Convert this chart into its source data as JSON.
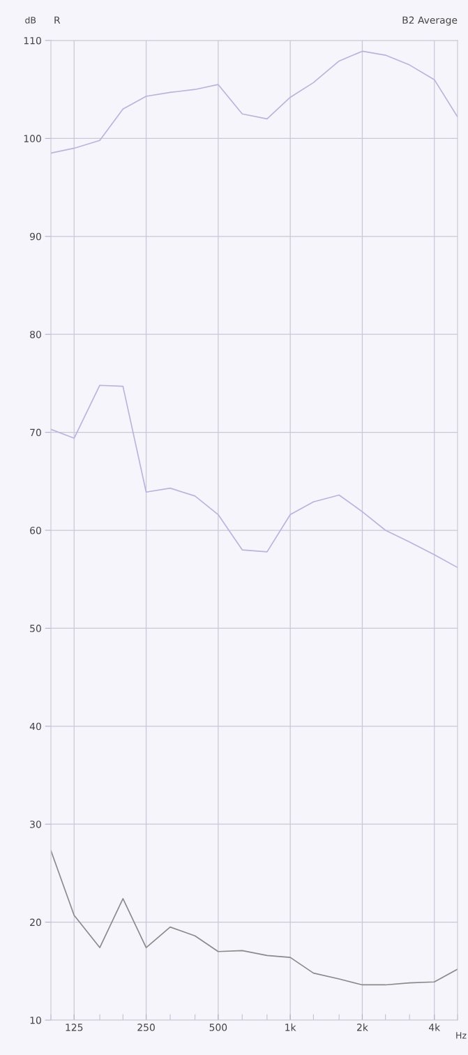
{
  "chart_data": {
    "type": "line",
    "title": "B2 Average",
    "xlabel": "Hz",
    "ylabel": "dB",
    "annotations": [
      "R"
    ],
    "x": [
      100,
      125,
      160,
      200,
      250,
      315,
      400,
      500,
      630,
      800,
      1000,
      1250,
      1600,
      2000,
      2500,
      3150,
      4000,
      5000
    ],
    "series": [
      {
        "color": "#b8b4dc",
        "values": [
          98.5,
          99.0,
          99.8,
          103.0,
          104.3,
          104.7,
          105.0,
          105.5,
          102.5,
          102.0,
          104.2,
          105.7,
          107.9,
          108.9,
          108.5,
          107.5,
          106.0,
          102.2
        ]
      },
      {
        "color": "#b8b4dc",
        "values": [
          70.3,
          69.4,
          74.8,
          74.7,
          63.9,
          64.3,
          63.5,
          61.6,
          58.0,
          57.8,
          61.6,
          62.9,
          63.6,
          61.9,
          60.0,
          58.8,
          57.5,
          56.2
        ]
      },
      {
        "color": "#8a8a8a",
        "values": [
          27.3,
          20.7,
          17.4,
          22.4,
          17.4,
          19.5,
          18.6,
          17.0,
          17.1,
          16.6,
          16.4,
          14.8,
          14.2,
          13.6,
          13.6,
          13.8,
          13.9,
          15.2
        ]
      }
    ],
    "log": "x",
    "xlim": [
      100,
      5000
    ],
    "ylim": [
      10,
      110
    ],
    "xticks": [
      {
        "value": 100,
        "label": null
      },
      {
        "value": 125,
        "label": "125"
      },
      {
        "value": 160,
        "label": null
      },
      {
        "value": 200,
        "label": null
      },
      {
        "value": 250,
        "label": "250"
      },
      {
        "value": 315,
        "label": null
      },
      {
        "value": 400,
        "label": null
      },
      {
        "value": 500,
        "label": "500"
      },
      {
        "value": 630,
        "label": null
      },
      {
        "value": 800,
        "label": null
      },
      {
        "value": 1000,
        "label": "1k"
      },
      {
        "value": 1250,
        "label": null
      },
      {
        "value": 1600,
        "label": null
      },
      {
        "value": 2000,
        "label": "2k"
      },
      {
        "value": 2500,
        "label": null
      },
      {
        "value": 3150,
        "label": null
      },
      {
        "value": 4000,
        "label": "4k"
      },
      {
        "value": 5000,
        "label": null
      }
    ],
    "yticks": [
      10,
      20,
      30,
      40,
      50,
      60,
      70,
      80,
      90,
      100,
      110
    ],
    "grid": true,
    "marker": "none",
    "line_style": "solid"
  }
}
